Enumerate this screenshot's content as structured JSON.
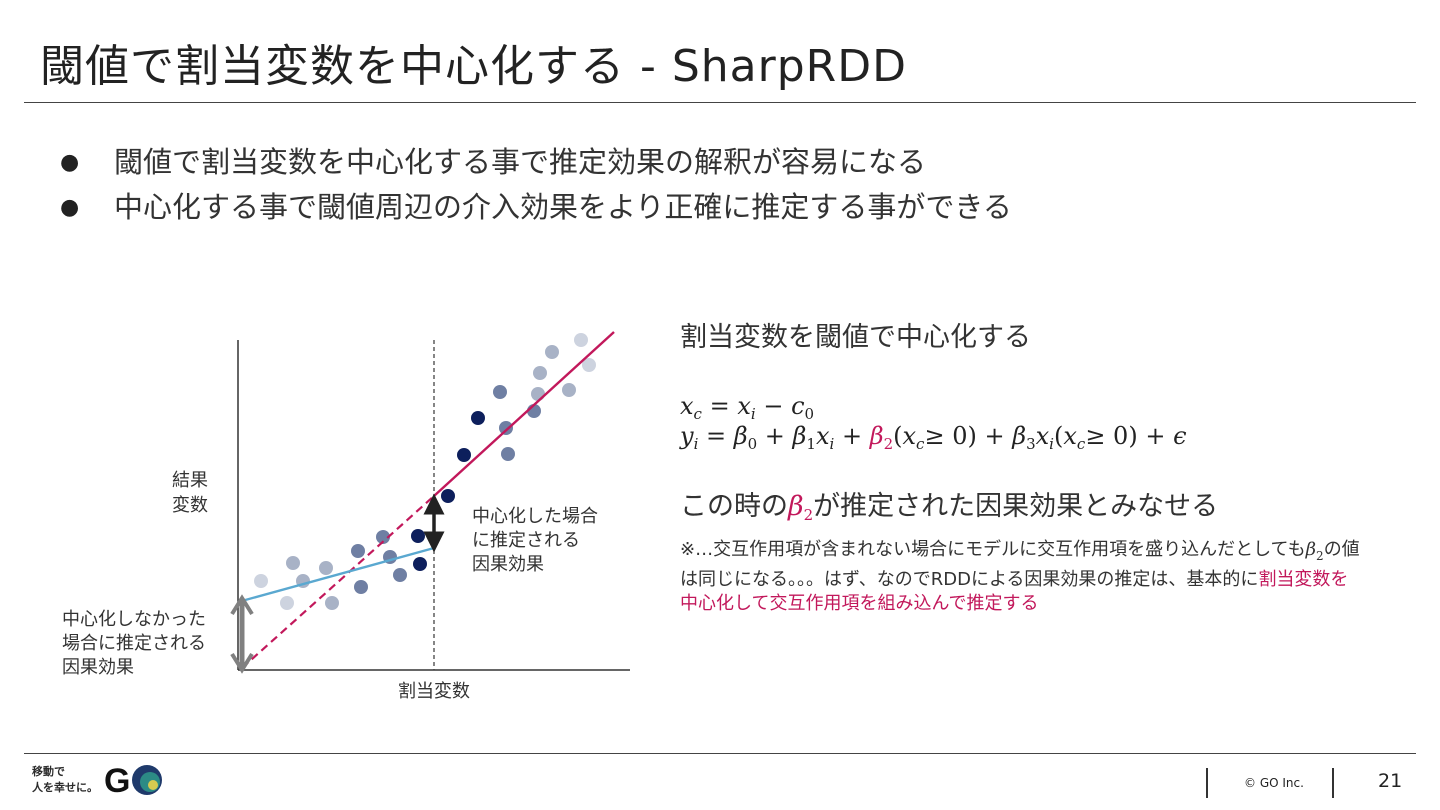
{
  "slide": {
    "title": "閾値で割当変数を中心化する - SharpRDD",
    "bullets": [
      "閾値で割当変数を中心化する事で推定効果の解釈が容易になる",
      "中心化する事で閾値周辺の介入効果をより正確に推定する事ができる"
    ]
  },
  "figure": {
    "y_axis_label_line1": "結果",
    "y_axis_label_line2": "変数",
    "x_axis_label": "割当変数",
    "centered_label": [
      "中心化した場合",
      "に推定される",
      "因果効果"
    ],
    "uncentered_label": [
      "中心化しなかった",
      "場合に推定される",
      "因果効果"
    ],
    "colors": {
      "pink_line": "#c2185b",
      "blue_line": "#5aa8d0",
      "dark_arrow": "#222222",
      "gray_arrow": "#808080"
    }
  },
  "right_panel": {
    "heading": "割当変数を閾値で中心化する",
    "eq1": {
      "xc": "x",
      "xc_sub": "c",
      "op": " = ",
      "xi": "x",
      "xi_sub": "i",
      "minus": " − ",
      "c0": "c",
      "c0_sub": "0"
    },
    "eq2": {
      "y": "y",
      "y_sub": "i",
      "eq": " = ",
      "b0": "β",
      "b0_sub": "0",
      "plus1": " + ",
      "b1": "β",
      "b1_sub": "1",
      "x1": "x",
      "x1_sub": "i",
      "plus2": " + ",
      "b2": "β",
      "b2_sub": "2",
      "paren_open": "(",
      "xc": "x",
      "xc_sub": "c",
      "ge0": "≥ 0)",
      "plus3": " + ",
      "b3": "β",
      "b3_sub": "3",
      "x3": "x",
      "x3_sub": "i",
      "paren_open2": "(",
      "xc2": "x",
      "xc2_sub": "c",
      "ge02": "≥ 0)",
      "plus4": " + ",
      "eps": "ϵ"
    },
    "statement_prefix": "この時の",
    "statement_beta": "β",
    "statement_beta_sub": "2",
    "statement_suffix": "が推定された因果効果とみなせる",
    "note_part1": "※…交互作用項が含まれない場合にモデルに交互作用項を盛り込んだとしても",
    "note_beta": "β",
    "note_beta_sub": "2",
    "note_part2": "の値は同じになる。。。はず、なのでRDDによる因果効果の推定は、基本的に",
    "note_highlight": "割当変数を中心化して交互作用項を組み込んで推定する"
  },
  "footer": {
    "logo_line1": "移動で",
    "logo_line2": "人を幸せに。",
    "logo_letter": "G",
    "copyright": "© GO Inc.",
    "page_number": "21"
  }
}
